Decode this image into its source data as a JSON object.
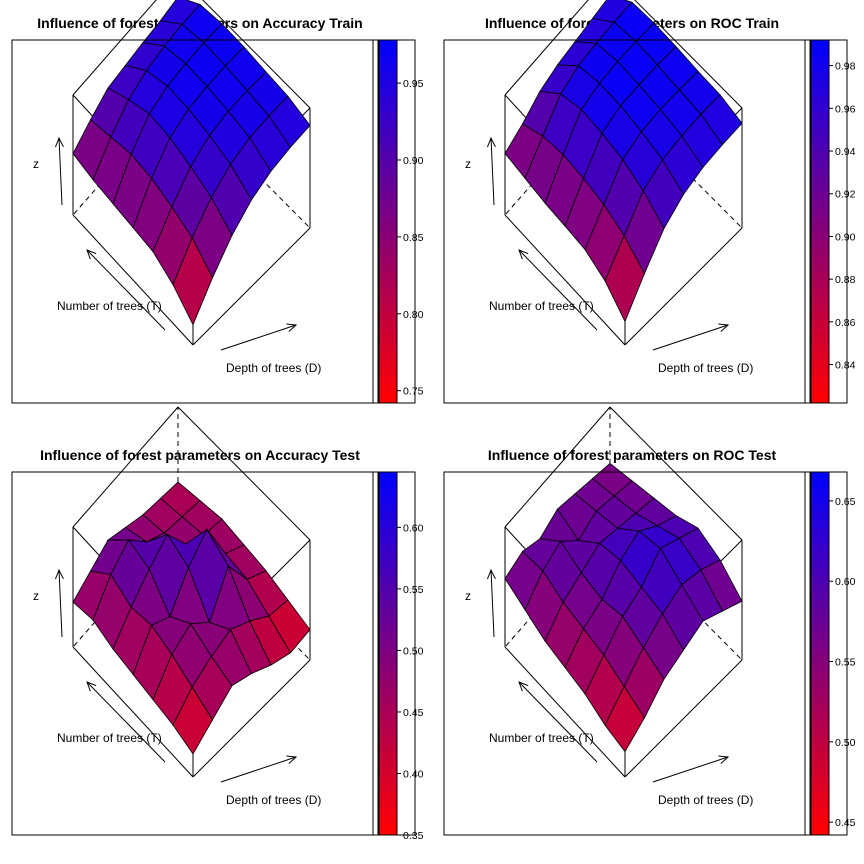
{
  "chart_data": [
    {
      "type": "surface3d",
      "title": "Influence of forest parameters on Accuracy Train",
      "xlabel": "Number of trees (T)",
      "ylabel": "Depth of trees (D)",
      "zlabel": "z",
      "colorbar": {
        "range": [
          0.742,
          0.978
        ],
        "ticks": [
          "0.75",
          "0.80",
          "0.85",
          "0.90",
          "0.95"
        ],
        "low_color": "#ff0000",
        "high_color": "#0000ff"
      },
      "z": [
        [
          0.85,
          0.88,
          0.906,
          0.912,
          0.918,
          0.922,
          0.93
        ],
        [
          0.84,
          0.89,
          0.928,
          0.948,
          0.958,
          0.962,
          0.962
        ],
        [
          0.835,
          0.9,
          0.945,
          0.962,
          0.968,
          0.97,
          0.968
        ],
        [
          0.83,
          0.895,
          0.94,
          0.96,
          0.966,
          0.968,
          0.966
        ],
        [
          0.825,
          0.88,
          0.925,
          0.95,
          0.96,
          0.962,
          0.96
        ],
        [
          0.8,
          0.86,
          0.905,
          0.935,
          0.95,
          0.955,
          0.955
        ],
        [
          0.76,
          0.82,
          0.87,
          0.905,
          0.925,
          0.935,
          0.94
        ]
      ]
    },
    {
      "type": "surface3d",
      "title": "Influence of forest parameters on ROC Train",
      "xlabel": "Number of trees (T)",
      "ylabel": "Depth of trees (D)",
      "zlabel": "z",
      "colorbar": {
        "range": [
          0.822,
          0.992
        ],
        "ticks": [
          "0.84",
          "0.86",
          "0.88",
          "0.90",
          "0.92",
          "0.94",
          "0.96",
          "0.98"
        ],
        "low_color": "#ff0000",
        "high_color": "#0000ff"
      },
      "z": [
        [
          0.9,
          0.915,
          0.935,
          0.945,
          0.95,
          0.955,
          0.96
        ],
        [
          0.895,
          0.93,
          0.965,
          0.978,
          0.982,
          0.984,
          0.984
        ],
        [
          0.89,
          0.935,
          0.975,
          0.985,
          0.988,
          0.988,
          0.986
        ],
        [
          0.888,
          0.932,
          0.972,
          0.984,
          0.986,
          0.986,
          0.984
        ],
        [
          0.885,
          0.925,
          0.965,
          0.978,
          0.982,
          0.982,
          0.98
        ],
        [
          0.87,
          0.91,
          0.95,
          0.968,
          0.975,
          0.978,
          0.978
        ],
        [
          0.84,
          0.885,
          0.925,
          0.948,
          0.96,
          0.965,
          0.968
        ]
      ]
    },
    {
      "type": "surface3d",
      "title": "Influence of forest parameters on Accuracy Test",
      "xlabel": "Number of trees (T)",
      "ylabel": "Depth of trees (D)",
      "zlabel": "z",
      "colorbar": {
        "range": [
          0.35,
          0.645
        ],
        "ticks": [
          "0.35",
          "0.40",
          "0.45",
          "0.50",
          "0.55",
          "0.60"
        ],
        "low_color": "#ff0000",
        "high_color": "#0000ff"
      },
      "z": [
        [
          0.44,
          0.47,
          0.5,
          0.48,
          0.46,
          0.45,
          0.44
        ],
        [
          0.45,
          0.52,
          0.56,
          0.5,
          0.47,
          0.46,
          0.45
        ],
        [
          0.43,
          0.49,
          0.54,
          0.58,
          0.5,
          0.47,
          0.46
        ],
        [
          0.42,
          0.5,
          0.47,
          0.55,
          0.6,
          0.48,
          0.45
        ],
        [
          0.41,
          0.48,
          0.51,
          0.46,
          0.56,
          0.47,
          0.44
        ],
        [
          0.4,
          0.45,
          0.48,
          0.5,
          0.47,
          0.43,
          0.42
        ],
        [
          0.38,
          0.42,
          0.46,
          0.44,
          0.41,
          0.39,
          0.4
        ]
      ]
    },
    {
      "type": "surface3d",
      "title": "Influence of forest parameters on ROC Test",
      "xlabel": "Number of trees (T)",
      "ylabel": "Depth of trees (D)",
      "zlabel": "z",
      "colorbar": {
        "range": [
          0.442,
          0.668
        ],
        "ticks": [
          "0.45",
          "0.50",
          "0.55",
          "0.60",
          "0.65"
        ],
        "low_color": "#ff0000",
        "high_color": "#0000ff"
      },
      "z": [
        [
          0.56,
          0.575,
          0.56,
          0.58,
          0.57,
          0.56,
          0.55
        ],
        [
          0.54,
          0.58,
          0.6,
          0.56,
          0.58,
          0.57,
          0.56
        ],
        [
          0.52,
          0.56,
          0.58,
          0.6,
          0.59,
          0.58,
          0.57
        ],
        [
          0.51,
          0.55,
          0.57,
          0.61,
          0.63,
          0.6,
          0.58
        ],
        [
          0.5,
          0.54,
          0.58,
          0.6,
          0.64,
          0.62,
          0.6
        ],
        [
          0.48,
          0.52,
          0.56,
          0.59,
          0.61,
          0.6,
          0.58
        ],
        [
          0.47,
          0.5,
          0.54,
          0.56,
          0.58,
          0.56,
          0.54
        ]
      ]
    }
  ]
}
